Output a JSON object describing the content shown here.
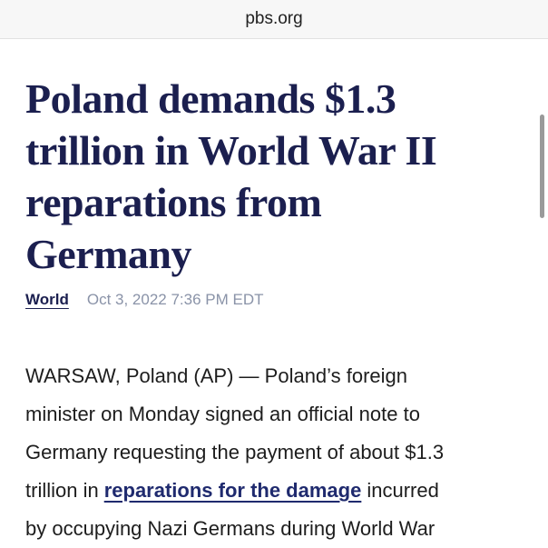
{
  "url": "pbs.org",
  "article": {
    "headline_lines": [
      "Poland demands $1.3",
      "trillion in World War II",
      "reparations from",
      "Germany"
    ],
    "section": "World",
    "date": "Oct 3, 2022 7:36 PM EDT",
    "body_lines": [
      "WARSAW, Poland (AP) — Poland’s foreign",
      "minister on Monday signed an official note to",
      "Germany requesting the payment of about $1.3",
      {
        "before": "trillion in",
        "link": "reparations for the damage",
        "after": "incurred"
      },
      "by occupying Nazi Germans during World War"
    ]
  }
}
